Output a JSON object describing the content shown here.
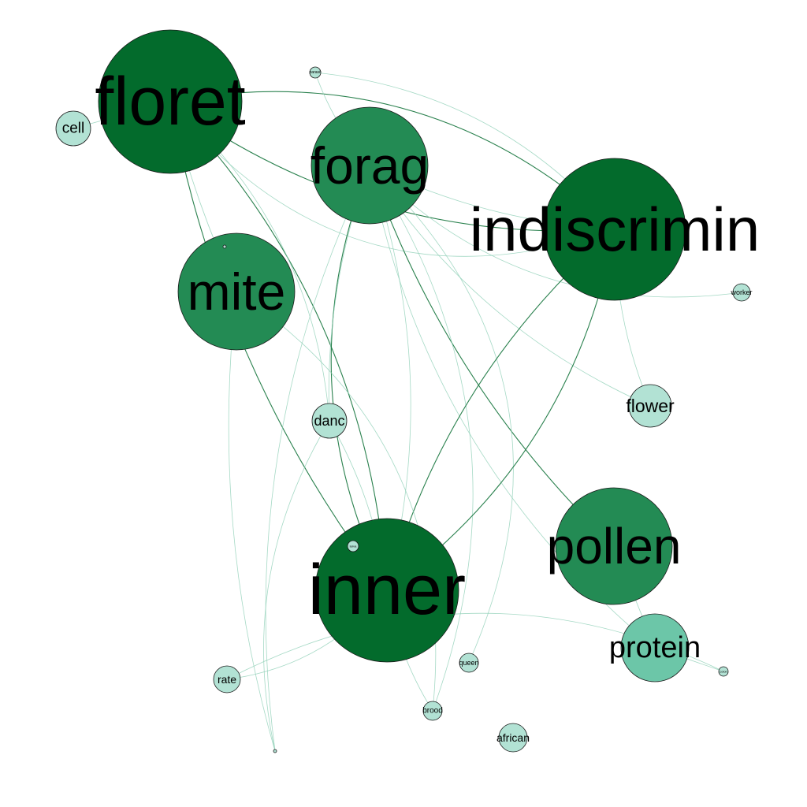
{
  "colors": {
    "level_dark": "#036b2c",
    "level_mid": "#238b54",
    "level_light": "#6cc6a8",
    "level_pale": "#b2e2d4",
    "edge_strong": "#1f7a45",
    "edge_weak": "#8fcfb6"
  },
  "nodes": [
    {
      "id": "floret",
      "label": "floret"
    },
    {
      "id": "forag",
      "label": "forag"
    },
    {
      "id": "indiscrimin",
      "label": "indiscrimin"
    },
    {
      "id": "mite",
      "label": "mite"
    },
    {
      "id": "inner",
      "label": "inner"
    },
    {
      "id": "pollen",
      "label": "pollen"
    },
    {
      "id": "protein",
      "label": "protein"
    },
    {
      "id": "cell",
      "label": "cell"
    },
    {
      "id": "flower",
      "label": "flower"
    },
    {
      "id": "danc",
      "label": "danc"
    },
    {
      "id": "rate",
      "label": "rate"
    },
    {
      "id": "african",
      "label": "african"
    },
    {
      "id": "queen",
      "label": "queen"
    },
    {
      "id": "brood",
      "label": "brood"
    },
    {
      "id": "worker",
      "label": "worker"
    },
    {
      "id": "parasit",
      "label": "parasit"
    },
    {
      "id": "colon",
      "label": "colon"
    },
    {
      "id": "larva",
      "label": "larva"
    },
    {
      "id": "tiny1",
      "label": ""
    },
    {
      "id": "tiny2",
      "label": ""
    }
  ]
}
